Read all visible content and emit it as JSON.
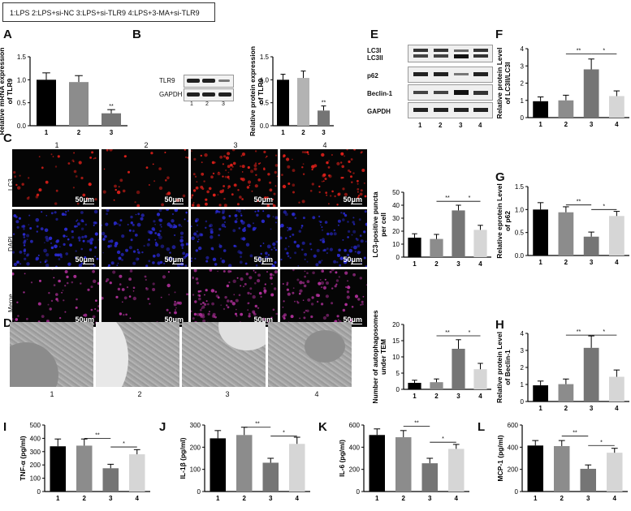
{
  "legend": "1:LPS  2:LPS+si-NC    3:LPS+si-TLR9    4:LPS+3-MA+si-TLR9",
  "panels": {
    "A": "A",
    "B": "B",
    "C": "C",
    "D": "D",
    "E": "E",
    "F": "F",
    "G": "G",
    "H": "H",
    "I": "I",
    "J": "J",
    "K": "K",
    "L": "L"
  },
  "blotB": {
    "rows": [
      "TLR9",
      "GAPDH"
    ],
    "lanes": [
      "1",
      "2",
      "3"
    ]
  },
  "blotE": {
    "rows": [
      "LC3I",
      "LC3II",
      "p62",
      "Beclin-1",
      "GAPDH"
    ],
    "lanes": [
      "1",
      "2",
      "3",
      "4"
    ]
  },
  "micro": {
    "cols": [
      "1",
      "2",
      "3",
      "4"
    ],
    "rows": [
      "LC3",
      "DAPI",
      "Merge"
    ],
    "scale": "50μm"
  },
  "tem": {
    "labels": [
      "1",
      "2",
      "3",
      "4"
    ]
  },
  "colors": {
    "g1": "#000000",
    "g2": "#8c8c8c",
    "g3": "#757575",
    "g4": "#d6d6d6",
    "red": "#e0201a",
    "blue": "#2a2ad0",
    "magenta": "#b0309a"
  },
  "chart_data": [
    {
      "id": "A",
      "type": "bar",
      "ylabel": "Relative mRNA expression of TLR9",
      "categories": [
        "1",
        "2",
        "3"
      ],
      "values": [
        1.0,
        0.95,
        0.27
      ],
      "errors": [
        0.15,
        0.14,
        0.08
      ],
      "ylim": [
        0,
        1.5
      ],
      "yticks": [
        "0.0",
        "0.5",
        "1.0",
        "1.5"
      ],
      "sig": [
        {
          "text": "**",
          "over": 2
        }
      ],
      "lines": []
    },
    {
      "id": "B",
      "type": "bar",
      "ylabel": "Relative protein expression of TLR9",
      "categories": [
        "1",
        "2",
        "3"
      ],
      "values": [
        1.0,
        1.04,
        0.33
      ],
      "errors": [
        0.12,
        0.15,
        0.1
      ],
      "ylim": [
        0,
        1.5
      ],
      "yticks": [
        "0.0",
        "0.5",
        "1.0",
        "1.5"
      ],
      "sig": [
        {
          "text": "**",
          "over": 2
        }
      ],
      "lines": []
    },
    {
      "id": "F",
      "type": "bar",
      "ylabel": "Relative protein Level of LC3II/LC3I",
      "categories": [
        "1",
        "2",
        "3",
        "4"
      ],
      "values": [
        0.95,
        1.0,
        2.8,
        1.25
      ],
      "errors": [
        0.25,
        0.3,
        0.6,
        0.3
      ],
      "ylim": [
        0,
        4
      ],
      "yticks": [
        "0",
        "1",
        "2",
        "3",
        "4"
      ],
      "sig": [],
      "lines": [
        {
          "a": 1,
          "b": 2,
          "text": "**",
          "level": 3.7
        },
        {
          "a": 2,
          "b": 3,
          "text": "*",
          "level": 3.7
        }
      ]
    },
    {
      "id": "LC3p",
      "type": "bar",
      "ylabel": "LC3-positive puncta per cell",
      "categories": [
        "1",
        "2",
        "3",
        "4"
      ],
      "values": [
        15,
        14,
        36,
        21
      ],
      "errors": [
        3,
        3.5,
        4,
        3.5
      ],
      "ylim": [
        0,
        50
      ],
      "yticks": [
        "0",
        "10",
        "20",
        "30",
        "40",
        "50"
      ],
      "sig": [],
      "lines": [
        {
          "a": 1,
          "b": 2,
          "text": "**",
          "level": 43
        },
        {
          "a": 2,
          "b": 3,
          "text": "*",
          "level": 43
        }
      ]
    },
    {
      "id": "G",
      "type": "bar",
      "ylabel": "Relative eprotein Level of p62",
      "categories": [
        "1",
        "2",
        "3",
        "4"
      ],
      "values": [
        1.0,
        0.94,
        0.41,
        0.86
      ],
      "errors": [
        0.15,
        0.12,
        0.1,
        0.1
      ],
      "ylim": [
        0,
        1.5
      ],
      "yticks": [
        "0.0",
        "0.5",
        "1.0",
        "1.5"
      ],
      "sig": [],
      "lines": [
        {
          "a": 1,
          "b": 2,
          "text": "**",
          "level": 1.1
        },
        {
          "a": 2,
          "b": 3,
          "text": "*",
          "level": 1.0
        }
      ]
    },
    {
      "id": "TEM",
      "type": "bar",
      "ylabel": "Number of autophagosomes under TEM",
      "categories": [
        "1",
        "2",
        "3",
        "4"
      ],
      "values": [
        2,
        2.2,
        12.5,
        6.2
      ],
      "errors": [
        0.8,
        1.0,
        2.8,
        1.8
      ],
      "ylim": [
        0,
        20
      ],
      "yticks": [
        "0",
        "5",
        "10",
        "15",
        "20"
      ],
      "sig": [],
      "lines": [
        {
          "a": 1,
          "b": 2,
          "text": "**",
          "level": 16.5
        },
        {
          "a": 2,
          "b": 3,
          "text": "*",
          "level": 16.5
        }
      ]
    },
    {
      "id": "H",
      "type": "bar",
      "ylabel": "Relative protein Level of Beclin-1",
      "categories": [
        "1",
        "2",
        "3",
        "4"
      ],
      "values": [
        0.95,
        1.02,
        3.15,
        1.45
      ],
      "errors": [
        0.25,
        0.3,
        0.7,
        0.4
      ],
      "ylim": [
        0,
        4
      ],
      "yticks": [
        "0",
        "1",
        "2",
        "3",
        "4"
      ],
      "sig": [],
      "lines": [
        {
          "a": 1,
          "b": 2,
          "text": "**",
          "level": 3.9
        },
        {
          "a": 2,
          "b": 3,
          "text": "*",
          "level": 3.9
        }
      ]
    },
    {
      "id": "I",
      "type": "bar",
      "ylabel": "TNF-α (pg/ml)",
      "categories": [
        "1",
        "2",
        "3",
        "4"
      ],
      "values": [
        340,
        345,
        175,
        280
      ],
      "errors": [
        55,
        50,
        30,
        35
      ],
      "ylim": [
        0,
        500
      ],
      "yticks": [
        "0",
        "100",
        "200",
        "300",
        "400",
        "500"
      ],
      "sig": [],
      "lines": [
        {
          "a": 1,
          "b": 2,
          "text": "**",
          "level": 400
        },
        {
          "a": 2,
          "b": 3,
          "text": "*",
          "level": 335
        }
      ]
    },
    {
      "id": "J",
      "type": "bar",
      "ylabel": "IL-1β (pg/ml)",
      "categories": [
        "1",
        "2",
        "3",
        "4"
      ],
      "values": [
        240,
        255,
        130,
        215
      ],
      "errors": [
        35,
        35,
        20,
        30
      ],
      "ylim": [
        0,
        300
      ],
      "yticks": [
        "0",
        "100",
        "200",
        "300"
      ],
      "sig": [],
      "lines": [
        {
          "a": 1,
          "b": 2,
          "text": "**",
          "level": 290
        },
        {
          "a": 2,
          "b": 3,
          "text": "*",
          "level": 250
        }
      ]
    },
    {
      "id": "K",
      "type": "bar",
      "ylabel": "IL-6 (pg/ml)",
      "categories": [
        "1",
        "2",
        "3",
        "4"
      ],
      "values": [
        510,
        490,
        255,
        385
      ],
      "errors": [
        55,
        60,
        45,
        40
      ],
      "ylim": [
        0,
        600
      ],
      "yticks": [
        "0",
        "200",
        "400",
        "600"
      ],
      "sig": [],
      "lines": [
        {
          "a": 1,
          "b": 2,
          "text": "**",
          "level": 590
        },
        {
          "a": 2,
          "b": 3,
          "text": "*",
          "level": 445
        }
      ]
    },
    {
      "id": "L",
      "type": "bar",
      "ylabel": "MCP-1 (pg/ml)",
      "categories": [
        "1",
        "2",
        "3",
        "4"
      ],
      "values": [
        415,
        410,
        205,
        350
      ],
      "errors": [
        45,
        50,
        35,
        40
      ],
      "ylim": [
        0,
        600
      ],
      "yticks": [
        "0",
        "200",
        "400",
        "600"
      ],
      "sig": [],
      "lines": [
        {
          "a": 1,
          "b": 2,
          "text": "**",
          "level": 500
        },
        {
          "a": 2,
          "b": 3,
          "text": "*",
          "level": 415
        }
      ]
    }
  ]
}
